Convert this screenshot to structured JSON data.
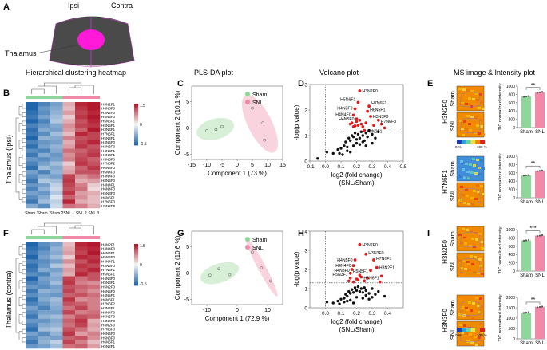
{
  "panel_letters": {
    "a": "A",
    "b": "B",
    "c": "C",
    "d": "D",
    "e": "E",
    "f": "F",
    "g": "G",
    "h": "H",
    "i": "I"
  },
  "anatomy": {
    "ipsi": "Ipsi",
    "contra": "Contra",
    "thalamus": "Thalamus"
  },
  "titles": {
    "heatmap": "Hierarchical clustering heatmap",
    "plsda": "PLS-DA plot",
    "volcano": "Volcano plot",
    "ms": "MS image & Intensity plot"
  },
  "row_titles": {
    "top": "Thalamus (Ipsi)",
    "bottom": "Thalamus (contra)"
  },
  "legend": {
    "sham": "Sham",
    "snl": "SNL"
  },
  "colors": {
    "sham": "#8fd69b",
    "snl": "#f08aa8",
    "sham_ellipse": "#cfeccf",
    "snl_ellipse": "#f8cdd8",
    "sig": "#e41a1c",
    "ns": "#111111",
    "heat_hi": "#b2182b",
    "heat_mid": "#f7f7f7",
    "heat_lo": "#2166ac"
  },
  "colorbar": {
    "max": "1.5",
    "mid": "0",
    "min": "-1.5"
  },
  "heatmap_columns": [
    "Sham 3",
    "Sham 1",
    "Sham 2",
    "SNL 1",
    "SNL 2",
    "SNL 3"
  ],
  "heatmap_rows_top": [
    "H3N2F1",
    "H4N3F0",
    "H3N2F0",
    "H4N5F0",
    "H5N6F1",
    "H5N5F1",
    "H3N4F1",
    "H7N6F1",
    "H5N4F1",
    "H4N4F0",
    "H3N3F0",
    "H4N5F1",
    "H6N6F1",
    "H5N5F0",
    "H7N6F2",
    "H6N5F0",
    "H5N4F0",
    "H3N4F0",
    "H8N4F0",
    "H4N4F1",
    "H6N4F0",
    "H5N3F0",
    "H6N5F1",
    "H7N6F3",
    "H5N2F0"
  ],
  "heatmap_rows_bottom": [
    "H3N2F1",
    "H3N4F0",
    "H6N4F1",
    "H5N4F0",
    "H4N4F1",
    "H3N3F0",
    "H7N6F1",
    "H5N5F1",
    "H4N3F0",
    "H5N6F1",
    "H5N2F0",
    "H6N5F0",
    "H4N5F1",
    "H6N6F1",
    "H7N6F2",
    "H3N4F1",
    "H8N4F0",
    "H5N5F0",
    "H4N4F0",
    "H3N2F0",
    "H7N6F0",
    "H6N4F0",
    "H5N3F0",
    "H6N5F1",
    "H5N2F1"
  ],
  "heatmap_values_top": [
    [
      -1.6,
      -1.2,
      -0.9,
      0.5,
      1.4,
      1.5
    ],
    [
      -1.5,
      -1.0,
      -0.8,
      0.4,
      1.3,
      1.5
    ],
    [
      -1.4,
      -1.1,
      -0.7,
      0.6,
      1.2,
      1.4
    ],
    [
      -1.3,
      -0.9,
      -0.6,
      0.3,
      1.3,
      1.5
    ],
    [
      -1.5,
      -1.2,
      -0.5,
      0.5,
      1.1,
      1.4
    ],
    [
      -1.2,
      -1.0,
      -0.8,
      0.7,
      1.2,
      1.3
    ],
    [
      -1.4,
      -0.8,
      -0.9,
      0.6,
      1.0,
      1.5
    ],
    [
      -1.3,
      -1.1,
      -0.6,
      0.4,
      1.4,
      1.2
    ],
    [
      -1.5,
      -0.7,
      -0.8,
      0.8,
      1.1,
      1.2
    ],
    [
      -1.2,
      -1.0,
      -0.9,
      0.5,
      1.2,
      1.4
    ],
    [
      -1.4,
      -0.9,
      -0.7,
      0.6,
      1.3,
      1.1
    ],
    [
      -1.1,
      -1.2,
      -0.8,
      0.9,
      1.0,
      1.2
    ],
    [
      -1.3,
      -0.8,
      -1.0,
      0.7,
      1.1,
      1.3
    ],
    [
      -1.0,
      -1.1,
      -0.9,
      0.8,
      1.2,
      1.0
    ],
    [
      -1.2,
      -0.9,
      -0.6,
      0.3,
      1.3,
      1.1
    ],
    [
      -1.4,
      -0.6,
      -0.8,
      0.5,
      1.0,
      1.3
    ],
    [
      -0.9,
      -1.2,
      -0.7,
      0.6,
      1.1,
      1.1
    ],
    [
      -1.1,
      -0.8,
      -0.9,
      1.2,
      0.7,
      0.9
    ],
    [
      -1.3,
      -0.5,
      -0.6,
      1.3,
      0.5,
      0.6
    ],
    [
      -1.0,
      -0.9,
      -0.4,
      1.2,
      0.8,
      0.3
    ],
    [
      -1.2,
      -0.7,
      -0.3,
      1.1,
      0.9,
      0.2
    ],
    [
      -0.9,
      -1.0,
      -0.5,
      1.3,
      0.6,
      0.5
    ],
    [
      -1.1,
      -0.8,
      -0.2,
      1.0,
      0.7,
      0.4
    ],
    [
      -1.3,
      -0.6,
      -0.4,
      1.4,
      0.5,
      0.4
    ],
    [
      -0.8,
      -1.1,
      -0.3,
      0.9,
      0.8,
      0.5
    ]
  ],
  "heatmap_values_bottom": [
    [
      -1.5,
      -1.1,
      -0.9,
      0.4,
      1.4,
      1.5
    ],
    [
      -1.4,
      -1.2,
      -0.7,
      0.5,
      1.3,
      1.4
    ],
    [
      -1.3,
      -1.0,
      -0.8,
      0.6,
      1.2,
      1.5
    ],
    [
      -1.5,
      -0.9,
      -0.6,
      0.3,
      1.4,
      1.3
    ],
    [
      -1.2,
      -1.1,
      -0.9,
      0.7,
      1.1,
      1.4
    ],
    [
      -1.4,
      -1.0,
      -0.5,
      0.4,
      1.3,
      1.2
    ],
    [
      -1.3,
      -0.8,
      -0.9,
      0.6,
      1.2,
      1.4
    ],
    [
      -1.1,
      -1.2,
      -0.7,
      0.5,
      1.4,
      1.1
    ],
    [
      -1.5,
      -0.9,
      -0.8,
      1.2,
      0.9,
      1.1
    ],
    [
      -1.2,
      -1.0,
      -0.6,
      1.3,
      0.8,
      0.7
    ],
    [
      -1.0,
      -1.1,
      -0.9,
      1.1,
      1.0,
      0.9
    ],
    [
      -1.3,
      -0.7,
      -0.8,
      1.2,
      0.9,
      0.7
    ],
    [
      -1.1,
      -0.9,
      -1.0,
      1.0,
      1.1,
      0.9
    ],
    [
      -1.4,
      -0.8,
      -0.6,
      1.3,
      0.7,
      0.8
    ],
    [
      -1.2,
      -1.0,
      -0.7,
      1.1,
      1.0,
      0.8
    ],
    [
      -0.9,
      -1.2,
      -0.8,
      0.9,
      1.2,
      0.8
    ],
    [
      -1.1,
      -0.9,
      -0.9,
      1.2,
      0.8,
      0.9
    ],
    [
      -1.3,
      -0.7,
      -0.6,
      0.8,
      1.1,
      1.0
    ],
    [
      -1.0,
      -1.0,
      -0.8,
      1.0,
      1.3,
      0.5
    ],
    [
      -1.2,
      -0.8,
      -0.7,
      0.9,
      1.2,
      0.6
    ],
    [
      -1.4,
      -0.6,
      -0.5,
      1.1,
      0.9,
      0.5
    ],
    [
      -0.9,
      -1.1,
      -0.7,
      1.3,
      0.6,
      0.8
    ],
    [
      -1.1,
      -0.8,
      -0.9,
      1.0,
      1.1,
      0.7
    ],
    [
      -1.3,
      -0.7,
      -0.4,
      1.2,
      0.8,
      0.4
    ],
    [
      -1.0,
      -0.9,
      -0.6,
      0.9,
      1.0,
      0.6
    ]
  ],
  "chart_data": [
    {
      "type": "heatmap",
      "panel": "B",
      "title": "Hierarchical clustering heatmap",
      "ylabel": "Thalamus (Ipsi)",
      "scale_range": [
        -1.5,
        1.5
      ]
    },
    {
      "type": "scatter",
      "panel": "C",
      "title": "PLS-DA plot",
      "xlabel": "Component 1 (73 %)",
      "ylabel": "Component 2 (10.1 %)",
      "xlim": [
        -15,
        15
      ],
      "ylim": [
        -6,
        8
      ],
      "xticks": [
        "-15",
        "-10",
        "-5",
        "0",
        "5",
        "10",
        "15"
      ],
      "yticks": [
        "-5",
        "0",
        "5"
      ],
      "series": [
        {
          "name": "Sham",
          "points": [
            [
              -10,
              -0.5
            ],
            [
              -7,
              -0.3
            ],
            [
              -5,
              0.3
            ]
          ]
        },
        {
          "name": "SNL",
          "points": [
            [
              5,
              3.8
            ],
            [
              8.5,
              1
            ],
            [
              9,
              -2.3
            ]
          ]
        }
      ]
    },
    {
      "type": "scatter",
      "panel": "D",
      "title": "Volcano plot",
      "xlabel": "log2 (fold change)",
      "xlabel2": "(SNL/Sham)",
      "ylabel": "-log(p value)",
      "xlim": [
        -0.1,
        0.5
      ],
      "ylim": [
        0,
        3
      ],
      "threshold_y": 1.3,
      "threshold_x": 0,
      "xticks": [
        "-0.1",
        "0.0",
        "0.1",
        "0.2",
        "0.3",
        "0.4",
        "0.5"
      ],
      "yticks": [
        "0",
        "1",
        "2",
        "3"
      ],
      "labels": [
        {
          "name": "H3N2F0",
          "x": 0.22,
          "y": 2.75
        },
        {
          "name": "H5N6F1",
          "x": 0.21,
          "y": 2.3
        },
        {
          "name": "H7N6F1",
          "x": 0.28,
          "y": 2.15
        },
        {
          "name": "H4N3F0",
          "x": 0.19,
          "y": 2.05
        },
        {
          "name": "H6N5F1",
          "x": 0.27,
          "y": 1.95
        },
        {
          "name": "H4N4F0",
          "x": 0.18,
          "y": 1.8
        },
        {
          "name": "H3N3F0",
          "x": 0.29,
          "y": 1.75
        },
        {
          "name": "H4N5F0",
          "x": 0.2,
          "y": 1.65
        },
        {
          "name": "H7N6F3",
          "x": 0.34,
          "y": 1.6
        },
        {
          "name": "H3N2F1",
          "x": 0.25,
          "y": 1.2
        }
      ],
      "significant": [
        [
          0.16,
          1.45
        ],
        [
          0.17,
          1.5
        ],
        [
          0.18,
          1.35
        ],
        [
          0.2,
          1.55
        ],
        [
          0.21,
          1.4
        ],
        [
          0.22,
          1.6
        ],
        [
          0.24,
          1.35
        ],
        [
          0.26,
          1.5
        ],
        [
          0.31,
          1.4
        ],
        [
          0.36,
          1.45
        ],
        [
          0.38,
          1.3
        ],
        [
          0.23,
          1.45
        ],
        [
          0.19,
          1.38
        ]
      ],
      "nonsignificant": [
        [
          -0.05,
          0.1
        ],
        [
          0.01,
          0.35
        ],
        [
          0.05,
          0.3
        ],
        [
          0.08,
          0.45
        ],
        [
          0.1,
          0.5
        ],
        [
          0.12,
          0.6
        ],
        [
          0.13,
          0.75
        ],
        [
          0.14,
          0.55
        ],
        [
          0.15,
          0.9
        ],
        [
          0.16,
          0.8
        ],
        [
          0.17,
          1.0
        ],
        [
          0.18,
          0.95
        ],
        [
          0.19,
          1.1
        ],
        [
          0.2,
          0.85
        ],
        [
          0.21,
          1.05
        ],
        [
          0.22,
          0.9
        ],
        [
          0.23,
          1.15
        ],
        [
          0.24,
          1.0
        ],
        [
          0.25,
          0.8
        ],
        [
          0.26,
          1.1
        ],
        [
          0.27,
          0.95
        ],
        [
          0.28,
          1.2
        ],
        [
          0.3,
          1.05
        ],
        [
          0.32,
          0.9
        ],
        [
          0.34,
          1.15
        ],
        [
          0.14,
          0.4
        ],
        [
          0.18,
          0.6
        ],
        [
          0.2,
          0.7
        ],
        [
          0.22,
          0.65
        ],
        [
          0.24,
          0.75
        ],
        [
          0.11,
          0.25
        ],
        [
          0.09,
          0.3
        ],
        [
          0.26,
          0.6
        ],
        [
          0.3,
          0.7
        ],
        [
          0.16,
          0.35
        ]
      ]
    },
    {
      "type": "bar",
      "panel": "E1",
      "glycan": "H3N2F0",
      "ylabel": "TIC normalized intensity",
      "categories": [
        "Sham",
        "SNL"
      ],
      "values": [
        750,
        850
      ],
      "ylim": [
        0,
        1000
      ],
      "yticks": [
        "0",
        "200",
        "400",
        "600",
        "800",
        "1000"
      ],
      "sig": "**"
    },
    {
      "type": "bar",
      "panel": "E2",
      "glycan": "H7N6F1",
      "ylabel": "TIC normalized intensity",
      "categories": [
        "Sham",
        "SNL"
      ],
      "values": [
        540,
        650
      ],
      "ylim": [
        0,
        1000
      ],
      "yticks": [
        "0",
        "200",
        "400",
        "600",
        "800",
        "1000"
      ],
      "sig": "**"
    },
    {
      "type": "heatmap",
      "panel": "F",
      "title": "Hierarchical clustering heatmap",
      "ylabel": "Thalamus (contra)",
      "scale_range": [
        -1.5,
        1.5
      ]
    },
    {
      "type": "scatter",
      "panel": "G",
      "title": "PLS-DA plot",
      "xlabel": "Component 1 (72.9 %)",
      "ylabel": "Component 2 (10.6 %)",
      "xlim": [
        -15,
        15
      ],
      "ylim": [
        -6,
        8
      ],
      "xticks": [
        "-10",
        "0",
        "10"
      ],
      "yticks": [
        "-5",
        "0",
        "5"
      ],
      "series": [
        {
          "name": "Sham",
          "points": [
            [
              -9,
              -0.4
            ],
            [
              -6,
              0.8
            ],
            [
              -2.5,
              -0.3
            ]
          ]
        },
        {
          "name": "SNL",
          "points": [
            [
              5,
              4
            ],
            [
              8,
              1
            ],
            [
              11,
              -1.5
            ]
          ]
        }
      ]
    },
    {
      "type": "scatter",
      "panel": "H",
      "title": "Volcano plot",
      "xlabel": "log2 (fold change)",
      "xlabel2": "(SNL/Sham)",
      "ylabel": "-log(p value)",
      "xlim": [
        -0.1,
        0.5
      ],
      "ylim": [
        0,
        4
      ],
      "threshold_y": 1.3,
      "threshold_x": 0,
      "xticks": [
        "0.0",
        "0.1",
        "0.2",
        "0.3",
        "0.4"
      ],
      "yticks": [
        "0",
        "1",
        "2",
        "3",
        "4"
      ],
      "labels": [
        {
          "name": "H3N2F0",
          "x": 0.22,
          "y": 3.3
        },
        {
          "name": "H3N3F0",
          "x": 0.26,
          "y": 2.8
        },
        {
          "name": "H4N5F0",
          "x": 0.19,
          "y": 2.5
        },
        {
          "name": "H7N6F1",
          "x": 0.31,
          "y": 2.5
        },
        {
          "name": "H4N4F0",
          "x": 0.18,
          "y": 2.2
        },
        {
          "name": "H3N2F1",
          "x": 0.33,
          "y": 2.1
        },
        {
          "name": "H4N3F0",
          "x": 0.17,
          "y": 2.0
        },
        {
          "name": "H5N5F1",
          "x": 0.29,
          "y": 1.95
        },
        {
          "name": "H5N3F1",
          "x": 0.16,
          "y": 1.8
        },
        {
          "name": "H6N6F1",
          "x": 0.36,
          "y": 1.65
        }
      ],
      "significant": [
        [
          0.15,
          1.4
        ],
        [
          0.16,
          1.55
        ],
        [
          0.18,
          1.35
        ],
        [
          0.2,
          1.5
        ],
        [
          0.21,
          1.45
        ],
        [
          0.23,
          1.6
        ],
        [
          0.25,
          1.4
        ],
        [
          0.27,
          1.55
        ],
        [
          0.35,
          1.35
        ],
        [
          0.22,
          1.7
        ]
      ],
      "nonsignificant": [
        [
          0.01,
          0.3
        ],
        [
          0.05,
          0.25
        ],
        [
          0.08,
          0.35
        ],
        [
          0.1,
          0.45
        ],
        [
          0.12,
          0.5
        ],
        [
          0.13,
          0.7
        ],
        [
          0.14,
          0.6
        ],
        [
          0.15,
          0.85
        ],
        [
          0.16,
          0.75
        ],
        [
          0.17,
          0.95
        ],
        [
          0.18,
          0.8
        ],
        [
          0.19,
          1.05
        ],
        [
          0.2,
          0.9
        ],
        [
          0.21,
          1.1
        ],
        [
          0.22,
          0.85
        ],
        [
          0.23,
          1.0
        ],
        [
          0.24,
          0.8
        ],
        [
          0.25,
          1.05
        ],
        [
          0.26,
          0.9
        ],
        [
          0.28,
          0.75
        ],
        [
          0.3,
          1.0
        ],
        [
          0.32,
          0.7
        ],
        [
          0.34,
          0.85
        ],
        [
          0.38,
          0.6
        ],
        [
          0.12,
          0.3
        ],
        [
          0.16,
          0.4
        ],
        [
          0.2,
          0.55
        ],
        [
          0.24,
          0.5
        ],
        [
          0.28,
          0.45
        ],
        [
          0.09,
          0.2
        ],
        [
          0.14,
          0.35
        ],
        [
          0.26,
          0.65
        ],
        [
          0.3,
          0.55
        ],
        [
          0.18,
          0.25
        ]
      ]
    },
    {
      "type": "bar",
      "panel": "I1",
      "glycan": "H3N2F0",
      "ylabel": "TIC normalized intensity",
      "categories": [
        "Sham",
        "SNL"
      ],
      "values": [
        740,
        855
      ],
      "ylim": [
        0,
        1000
      ],
      "yticks": [
        "0",
        "200",
        "400",
        "600",
        "800",
        "1000"
      ],
      "sig": "***"
    },
    {
      "type": "bar",
      "panel": "I2",
      "glycan": "H3N3F0",
      "ylabel": "TIC normalized intensity",
      "categories": [
        "Sham",
        "SNL"
      ],
      "values": [
        1270,
        1540
      ],
      "ylim": [
        0,
        2000
      ],
      "yticks": [
        "0",
        "500",
        "1000",
        "1500",
        "2000"
      ],
      "sig": "**"
    }
  ],
  "ms_scale": {
    "low": "0 %",
    "high": "100 %"
  }
}
